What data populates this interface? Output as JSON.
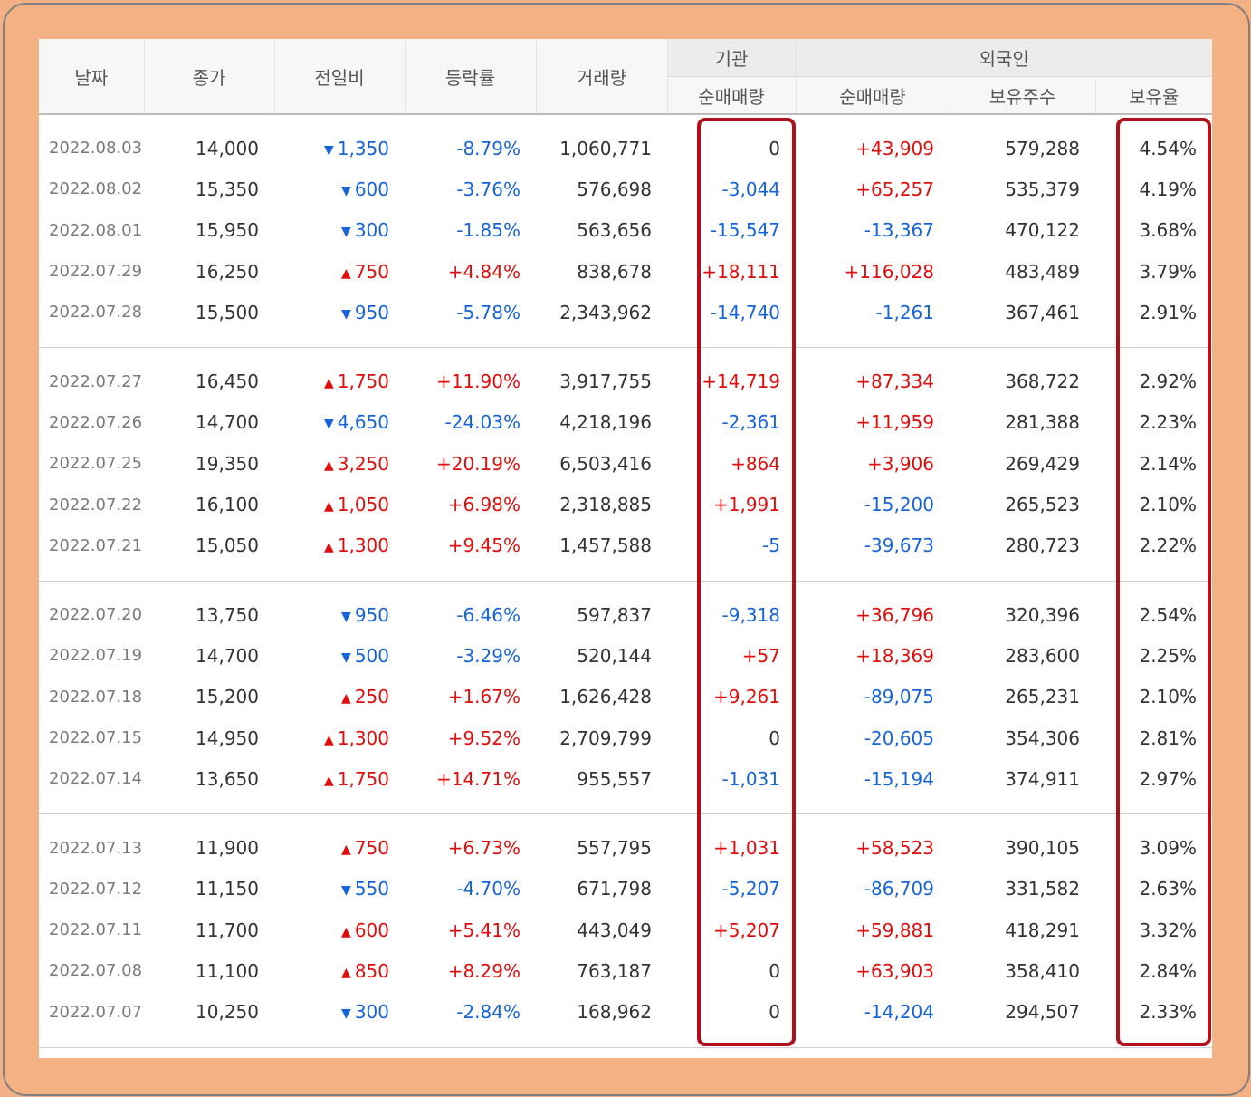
{
  "headers": {
    "date": "날짜",
    "close": "종가",
    "change": "전일비",
    "rate": "등락률",
    "volume": "거래량",
    "institution": "기관",
    "foreign": "외국인",
    "inst_net": "순매매량",
    "for_net": "순매매량",
    "for_holdings": "보유주수",
    "for_ratio": "보유율"
  },
  "colors": {
    "up": "#e00d0d",
    "down": "#1764d8",
    "highlight": "#b0101b"
  },
  "groups": [
    [
      {
        "date": "2022.08.03",
        "close": "14,000",
        "dir": "down",
        "change": "1,350",
        "rate": "-8.79%",
        "volume": "1,060,771",
        "inst": "0",
        "for": "+43,909",
        "hold": "579,288",
        "ratio": "4.54%"
      },
      {
        "date": "2022.08.02",
        "close": "15,350",
        "dir": "down",
        "change": "600",
        "rate": "-3.76%",
        "volume": "576,698",
        "inst": "-3,044",
        "for": "+65,257",
        "hold": "535,379",
        "ratio": "4.19%"
      },
      {
        "date": "2022.08.01",
        "close": "15,950",
        "dir": "down",
        "change": "300",
        "rate": "-1.85%",
        "volume": "563,656",
        "inst": "-15,547",
        "for": "-13,367",
        "hold": "470,122",
        "ratio": "3.68%"
      },
      {
        "date": "2022.07.29",
        "close": "16,250",
        "dir": "up",
        "change": "750",
        "rate": "+4.84%",
        "volume": "838,678",
        "inst": "+18,111",
        "for": "+116,028",
        "hold": "483,489",
        "ratio": "3.79%"
      },
      {
        "date": "2022.07.28",
        "close": "15,500",
        "dir": "down",
        "change": "950",
        "rate": "-5.78%",
        "volume": "2,343,962",
        "inst": "-14,740",
        "for": "-1,261",
        "hold": "367,461",
        "ratio": "2.91%"
      }
    ],
    [
      {
        "date": "2022.07.27",
        "close": "16,450",
        "dir": "up",
        "change": "1,750",
        "rate": "+11.90%",
        "volume": "3,917,755",
        "inst": "+14,719",
        "for": "+87,334",
        "hold": "368,722",
        "ratio": "2.92%"
      },
      {
        "date": "2022.07.26",
        "close": "14,700",
        "dir": "down",
        "change": "4,650",
        "rate": "-24.03%",
        "volume": "4,218,196",
        "inst": "-2,361",
        "for": "+11,959",
        "hold": "281,388",
        "ratio": "2.23%"
      },
      {
        "date": "2022.07.25",
        "close": "19,350",
        "dir": "up",
        "change": "3,250",
        "rate": "+20.19%",
        "volume": "6,503,416",
        "inst": "+864",
        "for": "+3,906",
        "hold": "269,429",
        "ratio": "2.14%"
      },
      {
        "date": "2022.07.22",
        "close": "16,100",
        "dir": "up",
        "change": "1,050",
        "rate": "+6.98%",
        "volume": "2,318,885",
        "inst": "+1,991",
        "for": "-15,200",
        "hold": "265,523",
        "ratio": "2.10%"
      },
      {
        "date": "2022.07.21",
        "close": "15,050",
        "dir": "up",
        "change": "1,300",
        "rate": "+9.45%",
        "volume": "1,457,588",
        "inst": "-5",
        "for": "-39,673",
        "hold": "280,723",
        "ratio": "2.22%"
      }
    ],
    [
      {
        "date": "2022.07.20",
        "close": "13,750",
        "dir": "down",
        "change": "950",
        "rate": "-6.46%",
        "volume": "597,837",
        "inst": "-9,318",
        "for": "+36,796",
        "hold": "320,396",
        "ratio": "2.54%"
      },
      {
        "date": "2022.07.19",
        "close": "14,700",
        "dir": "down",
        "change": "500",
        "rate": "-3.29%",
        "volume": "520,144",
        "inst": "+57",
        "for": "+18,369",
        "hold": "283,600",
        "ratio": "2.25%"
      },
      {
        "date": "2022.07.18",
        "close": "15,200",
        "dir": "up",
        "change": "250",
        "rate": "+1.67%",
        "volume": "1,626,428",
        "inst": "+9,261",
        "for": "-89,075",
        "hold": "265,231",
        "ratio": "2.10%"
      },
      {
        "date": "2022.07.15",
        "close": "14,950",
        "dir": "up",
        "change": "1,300",
        "rate": "+9.52%",
        "volume": "2,709,799",
        "inst": "0",
        "for": "-20,605",
        "hold": "354,306",
        "ratio": "2.81%"
      },
      {
        "date": "2022.07.14",
        "close": "13,650",
        "dir": "up",
        "change": "1,750",
        "rate": "+14.71%",
        "volume": "955,557",
        "inst": "-1,031",
        "for": "-15,194",
        "hold": "374,911",
        "ratio": "2.97%"
      }
    ],
    [
      {
        "date": "2022.07.13",
        "close": "11,900",
        "dir": "up",
        "change": "750",
        "rate": "+6.73%",
        "volume": "557,795",
        "inst": "+1,031",
        "for": "+58,523",
        "hold": "390,105",
        "ratio": "3.09%"
      },
      {
        "date": "2022.07.12",
        "close": "11,150",
        "dir": "down",
        "change": "550",
        "rate": "-4.70%",
        "volume": "671,798",
        "inst": "-5,207",
        "for": "-86,709",
        "hold": "331,582",
        "ratio": "2.63%"
      },
      {
        "date": "2022.07.11",
        "close": "11,700",
        "dir": "up",
        "change": "600",
        "rate": "+5.41%",
        "volume": "443,049",
        "inst": "+5,207",
        "for": "+59,881",
        "hold": "418,291",
        "ratio": "3.32%"
      },
      {
        "date": "2022.07.08",
        "close": "11,100",
        "dir": "up",
        "change": "850",
        "rate": "+8.29%",
        "volume": "763,187",
        "inst": "0",
        "for": "+63,903",
        "hold": "358,410",
        "ratio": "2.84%"
      },
      {
        "date": "2022.07.07",
        "close": "10,250",
        "dir": "down",
        "change": "300",
        "rate": "-2.84%",
        "volume": "168,962",
        "inst": "0",
        "for": "-14,204",
        "hold": "294,507",
        "ratio": "2.33%"
      }
    ]
  ]
}
